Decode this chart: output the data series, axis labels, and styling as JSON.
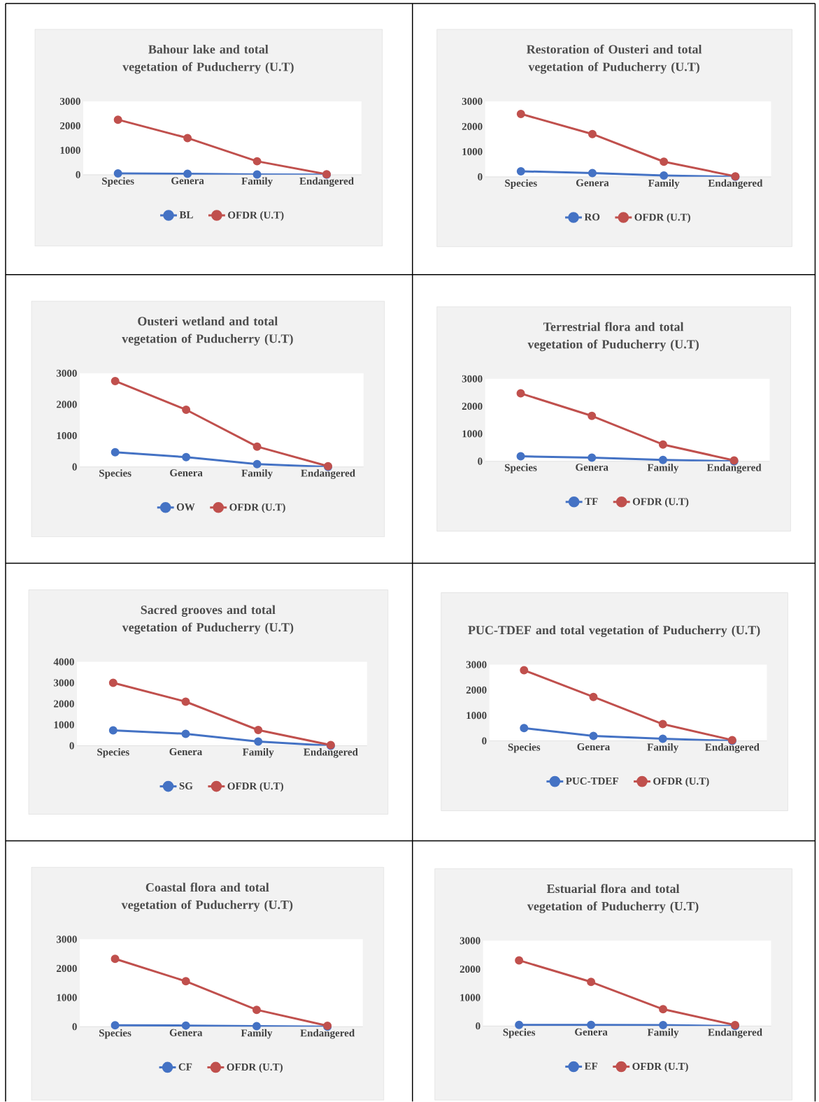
{
  "chart_data": [
    {
      "type": "line",
      "title": "Bahour lake and total vegetation of Puducherry (U.T)",
      "categories": [
        "Species",
        "Genera",
        "Family",
        "Endangered"
      ],
      "ylim": [
        0,
        3000
      ],
      "yticks": [
        0,
        1000,
        2000,
        3000
      ],
      "legend": "bottom",
      "marker": "circle",
      "series": [
        {
          "name": "BL",
          "color": "#4472c4",
          "values": [
            50,
            40,
            10,
            0
          ]
        },
        {
          "name": "OFDR (U.T)",
          "color": "#c0504d",
          "values": [
            2250,
            1500,
            550,
            20
          ]
        }
      ]
    },
    {
      "type": "line",
      "title": "Restoration of Ousteri and total vegetation of Puducherry (U.T)",
      "categories": [
        "Species",
        "Genera",
        "Family",
        "Endangered"
      ],
      "ylim": [
        0,
        3000
      ],
      "yticks": [
        0,
        1000,
        2000,
        3000
      ],
      "legend": "bottom",
      "marker": "circle",
      "series": [
        {
          "name": "RO",
          "color": "#4472c4",
          "values": [
            220,
            150,
            50,
            0
          ]
        },
        {
          "name": "OFDR (U.T)",
          "color": "#c0504d",
          "values": [
            2500,
            1700,
            600,
            20
          ]
        }
      ]
    },
    {
      "type": "line",
      "title": "Ousteri wetland and total vegetation of Puducherry (U.T)",
      "categories": [
        "Species",
        "Genera",
        "Family",
        "Endangered"
      ],
      "ylim": [
        0,
        3000
      ],
      "yticks": [
        0,
        1000,
        2000,
        3000
      ],
      "legend": "bottom",
      "marker": "circle",
      "series": [
        {
          "name": "OW",
          "color": "#4472c4",
          "values": [
            470,
            310,
            90,
            0
          ]
        },
        {
          "name": "OFDR (U.T)",
          "color": "#c0504d",
          "values": [
            2750,
            1830,
            650,
            20
          ]
        }
      ]
    },
    {
      "type": "line",
      "title": "Terrestrial flora and total vegetation of Puducherry (U.T)",
      "categories": [
        "Species",
        "Genera",
        "Family",
        "Endangered"
      ],
      "ylim": [
        0,
        3000
      ],
      "yticks": [
        0,
        1000,
        2000,
        3000
      ],
      "legend": "bottom",
      "marker": "circle",
      "series": [
        {
          "name": "TF",
          "color": "#4472c4",
          "values": [
            180,
            130,
            50,
            0
          ]
        },
        {
          "name": "OFDR (U.T)",
          "color": "#c0504d",
          "values": [
            2470,
            1650,
            610,
            30
          ]
        }
      ]
    },
    {
      "type": "line",
      "title": "Sacred grooves and total vegetation of Puducherry (U.T)",
      "categories": [
        "Species",
        "Genera",
        "Family",
        "Endangered"
      ],
      "ylim": [
        0,
        4000
      ],
      "yticks": [
        0,
        1000,
        2000,
        3000,
        4000
      ],
      "legend": "bottom",
      "marker": "circle",
      "series": [
        {
          "name": "SG",
          "color": "#4472c4",
          "values": [
            730,
            570,
            200,
            0
          ]
        },
        {
          "name": "OFDR (U.T)",
          "color": "#c0504d",
          "values": [
            3000,
            2100,
            750,
            30
          ]
        }
      ]
    },
    {
      "type": "line",
      "title": "PUC-TDEF and total vegetation of Puducherry (U.T)",
      "categories": [
        "Species",
        "Genera",
        "Family",
        "Endangered"
      ],
      "ylim": [
        0,
        3000
      ],
      "yticks": [
        0,
        1000,
        2000,
        3000
      ],
      "legend": "bottom",
      "marker": "circle",
      "series": [
        {
          "name": "PUC-TDEF",
          "color": "#4472c4",
          "values": [
            500,
            190,
            80,
            0
          ]
        },
        {
          "name": "OFDR (U.T)",
          "color": "#c0504d",
          "values": [
            2780,
            1730,
            660,
            30
          ]
        }
      ]
    },
    {
      "type": "line",
      "title": "Coastal flora and total vegetation of Puducherry (U.T)",
      "categories": [
        "Species",
        "Genera",
        "Family",
        "Endangered"
      ],
      "ylim": [
        0,
        3000
      ],
      "yticks": [
        0,
        1000,
        2000,
        3000
      ],
      "legend": "bottom",
      "marker": "circle",
      "series": [
        {
          "name": "CF",
          "color": "#4472c4",
          "values": [
            50,
            40,
            20,
            0
          ]
        },
        {
          "name": "OFDR (U.T)",
          "color": "#c0504d",
          "values": [
            2330,
            1560,
            580,
            30
          ]
        }
      ]
    },
    {
      "type": "line",
      "title": "Estuarial flora and total vegetation of Puducherry (U.T)",
      "categories": [
        "Species",
        "Genera",
        "Family",
        "Endangered"
      ],
      "ylim": [
        0,
        3000
      ],
      "yticks": [
        0,
        1000,
        2000,
        3000
      ],
      "legend": "bottom",
      "marker": "circle",
      "series": [
        {
          "name": "EF",
          "color": "#4472c4",
          "values": [
            40,
            40,
            30,
            0
          ]
        },
        {
          "name": "OFDR (U.T)",
          "color": "#c0504d",
          "values": [
            2310,
            1550,
            590,
            30
          ]
        }
      ]
    }
  ]
}
